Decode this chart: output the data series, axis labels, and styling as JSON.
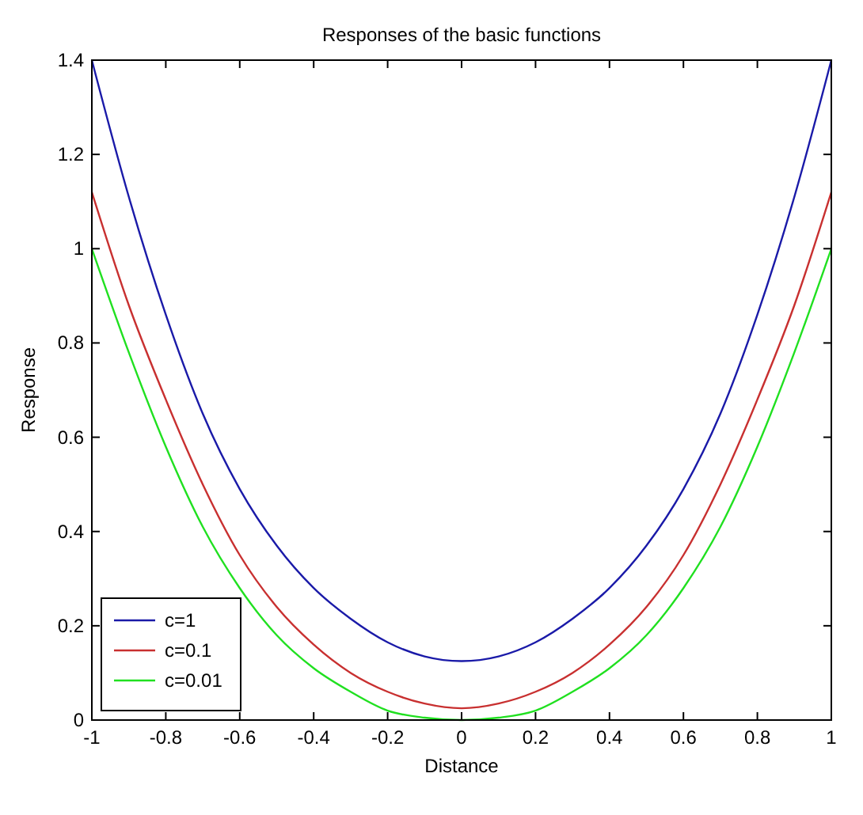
{
  "chart_data": {
    "type": "line",
    "title": "Responses of the basic functions",
    "xlabel": "Distance",
    "ylabel": "Response",
    "x": [
      -1,
      -0.9,
      -0.8,
      -0.7,
      -0.6,
      -0.5,
      -0.4,
      -0.3,
      -0.2,
      -0.1,
      0,
      0.1,
      0.2,
      0.3,
      0.4,
      0.5,
      0.6,
      0.7,
      0.8,
      0.9,
      1
    ],
    "series": [
      {
        "name": "c=1",
        "color": "#1a1aa8",
        "values": [
          1.4,
          1.11,
          0.86,
          0.65,
          0.49,
          0.37,
          0.28,
          0.215,
          0.165,
          0.135,
          0.125,
          0.135,
          0.165,
          0.215,
          0.28,
          0.37,
          0.49,
          0.65,
          0.86,
          1.11,
          1.4
        ]
      },
      {
        "name": "c=0.1",
        "color": "#c83030",
        "values": [
          1.12,
          0.88,
          0.68,
          0.5,
          0.35,
          0.24,
          0.16,
          0.1,
          0.06,
          0.035,
          0.025,
          0.035,
          0.06,
          0.1,
          0.16,
          0.24,
          0.35,
          0.5,
          0.68,
          0.88,
          1.12
        ]
      },
      {
        "name": "c=0.01",
        "color": "#20e020",
        "values": [
          1,
          0.78,
          0.58,
          0.41,
          0.28,
          0.18,
          0.11,
          0.06,
          0.02,
          0.005,
          0,
          0.005,
          0.02,
          0.06,
          0.11,
          0.18,
          0.28,
          0.41,
          0.58,
          0.78,
          1
        ]
      }
    ],
    "xlim": [
      -1,
      1
    ],
    "ylim": [
      0,
      1.4
    ],
    "xticks": [
      -1,
      -0.8,
      -0.6,
      -0.4,
      -0.2,
      0,
      0.2,
      0.4,
      0.6,
      0.8,
      1
    ],
    "yticks": [
      0,
      0.2,
      0.4,
      0.6,
      0.8,
      1,
      1.2,
      1.4
    ],
    "legend": "bottom left",
    "grid": false,
    "marker": "none",
    "line_style": "solid"
  }
}
